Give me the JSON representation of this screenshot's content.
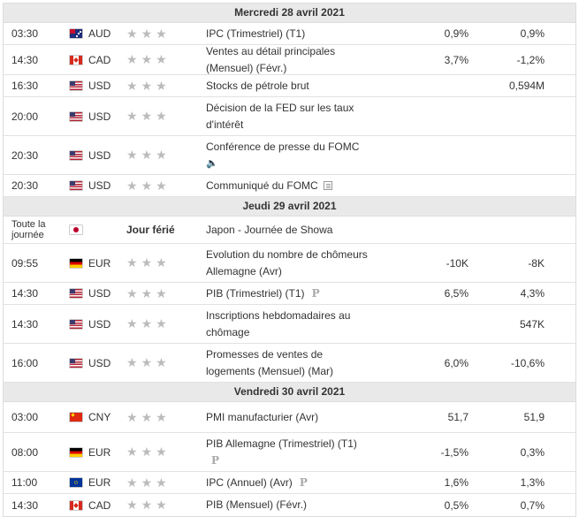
{
  "days": [
    {
      "label": "Mercredi 28 avril 2021",
      "events": [
        {
          "time": "03:30",
          "flag": "aud",
          "currency": "AUD",
          "event": "IPC (Trimestriel) (T1)",
          "actual": "0,9%",
          "previous": "0,9%",
          "icon": ""
        },
        {
          "time": "14:30",
          "flag": "cad",
          "currency": "CAD",
          "event": "Ventes au détail principales (Mensuel) (Févr.)",
          "actual": "3,7%",
          "previous": "-1,2%",
          "icon": ""
        },
        {
          "time": "16:30",
          "flag": "usd",
          "currency": "USD",
          "event": "Stocks de pétrole brut",
          "actual": "",
          "previous": "0,594M",
          "icon": ""
        },
        {
          "time": "20:00",
          "flag": "usd",
          "currency": "USD",
          "event": "Décision de la FED sur les taux d'intérêt",
          "actual": "",
          "previous": "",
          "icon": ""
        },
        {
          "time": "20:30",
          "flag": "usd",
          "currency": "USD",
          "event": "Conférence de presse du FOMC",
          "actual": "",
          "previous": "",
          "icon": "speaker-icon"
        },
        {
          "time": "20:30",
          "flag": "usd",
          "currency": "USD",
          "event": "Communiqué du FOMC",
          "actual": "",
          "previous": "",
          "icon": "document-icon"
        }
      ]
    },
    {
      "label": "Jeudi 29 avril 2021",
      "events": [
        {
          "time": "Toute la journée",
          "flag": "jpy",
          "currency": "",
          "holiday": "Jour férié",
          "event": "Japon - Journée de Showa",
          "actual": "",
          "previous": "",
          "icon": ""
        },
        {
          "time": "09:55",
          "flag": "eur-de",
          "currency": "EUR",
          "event": "Evolution du nombre de chômeurs Allemagne (Avr)",
          "actual": "-10K",
          "previous": "-8K",
          "icon": ""
        },
        {
          "time": "14:30",
          "flag": "usd",
          "currency": "USD",
          "event": "PIB (Trimestriel) (T1)",
          "actual": "6,5%",
          "previous": "4,3%",
          "icon": "preliminary-icon"
        },
        {
          "time": "14:30",
          "flag": "usd",
          "currency": "USD",
          "event": "Inscriptions hebdomadaires au chômage",
          "actual": "",
          "previous": "547K",
          "icon": ""
        },
        {
          "time": "16:00",
          "flag": "usd",
          "currency": "USD",
          "event": "Promesses de ventes de logements (Mensuel) (Mar)",
          "actual": "6,0%",
          "previous": "-10,6%",
          "icon": ""
        }
      ]
    },
    {
      "label": "Vendredi 30 avril 2021",
      "events": [
        {
          "time": "03:00",
          "flag": "cny",
          "currency": "CNY",
          "event": "PMI manufacturier (Avr)",
          "actual": "51,7",
          "previous": "51,9",
          "icon": ""
        },
        {
          "time": "08:00",
          "flag": "eur-de",
          "currency": "EUR",
          "event": "PIB Allemagne (Trimestriel) (T1)",
          "actual": "-1,5%",
          "previous": "0,3%",
          "icon": "preliminary-icon-below"
        },
        {
          "time": "11:00",
          "flag": "eur",
          "currency": "EUR",
          "event": "IPC (Annuel) (Avr)",
          "actual": "1,6%",
          "previous": "1,3%",
          "icon": "preliminary-icon"
        },
        {
          "time": "14:30",
          "flag": "cad",
          "currency": "CAD",
          "event": "PIB (Mensuel) (Févr.)",
          "actual": "0,5%",
          "previous": "0,7%",
          "icon": ""
        }
      ]
    }
  ],
  "icons": {
    "star": "star-icon",
    "preliminary_glyph": "P"
  }
}
